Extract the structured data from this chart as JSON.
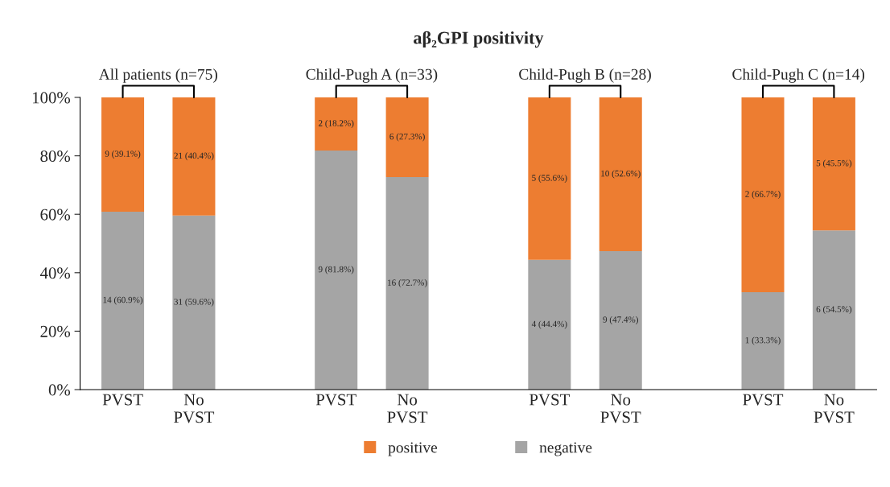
{
  "chart_data": {
    "type": "bar",
    "stacked": true,
    "title": "aβ₂GPI positivity",
    "categories": [
      "PVST",
      "No\nPVST",
      null,
      "PVST",
      "No\nPVST",
      null,
      "PVST",
      "No\nPVST",
      null,
      "PVST",
      "No\nPVST"
    ],
    "series": [
      {
        "name": "negative",
        "color": "#a5a5a5",
        "values": [
          60.9,
          59.6,
          null,
          81.8,
          72.7,
          null,
          44.4,
          47.4,
          null,
          33.3,
          54.5
        ],
        "value_labels": [
          "14 (60.9%)",
          "31 (59.6%)",
          null,
          "9 (81.8%)",
          "16 (72.7%)",
          null,
          "4 (44.4%)",
          "9 (47.4%)",
          null,
          "1 (33.3%)",
          "6 (54.5%)"
        ]
      },
      {
        "name": "positive",
        "color": "#ed7d31",
        "values": [
          39.1,
          40.4,
          null,
          18.2,
          27.3,
          null,
          55.6,
          52.6,
          null,
          66.7,
          45.5
        ],
        "value_labels": [
          "9 (39.1%)",
          "21 (40.4%)",
          null,
          "2 (18.2%)",
          "6 (27.3%)",
          null,
          "5 (55.6%)",
          "10 (52.6%)",
          null,
          "2 (66.7%)",
          "5 (45.5%)"
        ]
      }
    ],
    "annotations": [
      "All patients (n=75)",
      "Child-Pugh A (n=33)",
      "Child-Pugh B (n=28)",
      "Child-Pugh C (n=14)"
    ],
    "ylim": [
      0,
      100
    ],
    "yticks": [
      {
        "value": 0,
        "label": "0%"
      },
      {
        "value": 20,
        "label": "20%"
      },
      {
        "value": 40,
        "label": "40%"
      },
      {
        "value": 60,
        "label": "60%"
      },
      {
        "value": 80,
        "label": "80%"
      },
      {
        "value": 100,
        "label": "100%"
      }
    ],
    "legend": "bottom",
    "grid": false
  }
}
